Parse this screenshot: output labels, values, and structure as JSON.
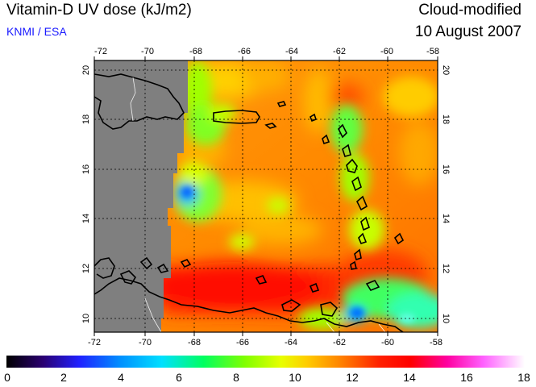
{
  "header": {
    "title": "Vitamin-D UV dose (kJ/m2)",
    "subtitle": "KNMI / ESA",
    "type_label": "Cloud-modified",
    "date": "10 August 2007"
  },
  "map": {
    "lon_ticks": [
      "-72",
      "-70",
      "-68",
      "-66",
      "-64",
      "-62",
      "-60",
      "-58"
    ],
    "lat_ticks": [
      "10",
      "12",
      "14",
      "16",
      "18",
      "20"
    ],
    "lon_range": [
      -72,
      -58
    ],
    "lat_range": [
      9.5,
      20.5
    ],
    "nodata_color": "#7f7f7f",
    "grid": true
  },
  "colorbar": {
    "ticks": [
      "0",
      "2",
      "4",
      "6",
      "8",
      "10",
      "12",
      "14",
      "16",
      "18"
    ],
    "range": [
      0,
      18
    ]
  }
}
